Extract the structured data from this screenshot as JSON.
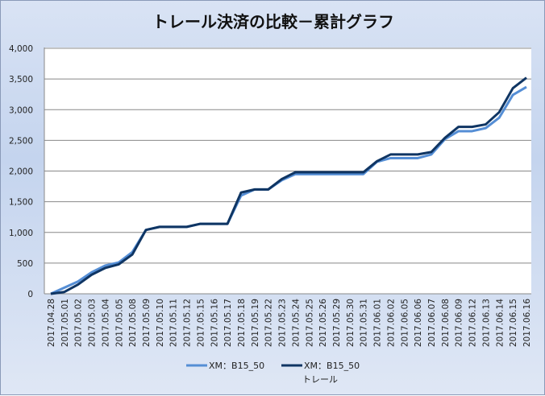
{
  "chart_data": {
    "type": "line",
    "title": "トレール決済の比較－累計グラフ",
    "xlabel": "トレール",
    "ylabel": "",
    "ylim": [
      0,
      4000
    ],
    "yticks": [
      0,
      500,
      1000,
      1500,
      2000,
      2500,
      3000,
      3500,
      4000
    ],
    "ytick_labels": [
      "0",
      "500",
      "1,000",
      "1,500",
      "2,000",
      "2,500",
      "3,000",
      "3,500",
      "4,000"
    ],
    "grid": true,
    "legend_position": "bottom",
    "categories": [
      "2017.04.28",
      "2017.05.01",
      "2017.05.02",
      "2017.05.03",
      "2017.05.04",
      "2017.05.05",
      "2017.05.08",
      "2017.05.09",
      "2017.05.10",
      "2017.05.11",
      "2017.05.12",
      "2017.05.15",
      "2017.05.16",
      "2017.05.17",
      "2017.05.18",
      "2017.05.19",
      "2017.05.22",
      "2017.05.23",
      "2017.05.24",
      "2017.05.25",
      "2017.05.26",
      "2017.05.29",
      "2017.05.30",
      "2017.05.31",
      "2017.06.01",
      "2017.06.02",
      "2017.06.05",
      "2017.06.06",
      "2017.06.07",
      "2017.06.08",
      "2017.06.09",
      "2017.06.12",
      "2017.06.13",
      "2017.06.14",
      "2017.06.15",
      "2017.06.16"
    ],
    "series": [
      {
        "name": "XM：B15_50",
        "color": "#558ed5",
        "values": [
          0,
          100,
          200,
          350,
          460,
          510,
          680,
          1040,
          1090,
          1090,
          1090,
          1140,
          1140,
          1140,
          1600,
          1700,
          1700,
          1850,
          1950,
          1950,
          1950,
          1950,
          1950,
          1950,
          2150,
          2210,
          2210,
          2210,
          2270,
          2520,
          2650,
          2650,
          2700,
          2870,
          3240,
          3370
        ]
      },
      {
        "name": "XM：B15_50",
        "color": "#0f3563",
        "values": [
          0,
          30,
          150,
          310,
          420,
          480,
          640,
          1040,
          1090,
          1090,
          1090,
          1140,
          1140,
          1140,
          1650,
          1700,
          1700,
          1870,
          1980,
          1980,
          1980,
          1980,
          1980,
          1980,
          2160,
          2270,
          2270,
          2270,
          2310,
          2540,
          2720,
          2720,
          2760,
          2960,
          3350,
          3520
        ]
      }
    ]
  }
}
